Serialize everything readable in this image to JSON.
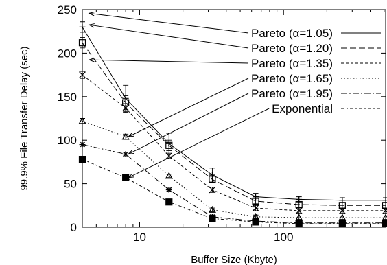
{
  "chart_data": {
    "type": "line",
    "xlabel": "Buffer Size (Kbyte)",
    "ylabel": "99.9% File Transfer Delay (sec)",
    "xscale": "log",
    "xlim": [
      4,
      512
    ],
    "ylim": [
      0,
      250
    ],
    "x_ticks": [
      10,
      100
    ],
    "x_tick_labels": [
      "10",
      "100"
    ],
    "y_ticks": [
      0,
      50,
      100,
      150,
      200,
      250
    ],
    "y_tick_labels": [
      "0",
      "50",
      "100",
      "150",
      "200",
      "250"
    ],
    "grid": false,
    "legend_position": "top-right",
    "x": [
      4,
      8,
      16,
      32,
      64,
      128,
      256,
      512
    ],
    "series": [
      {
        "name": "Pareto (α=1.05)",
        "marker": "plus",
        "dash": "",
        "values": [
          230,
          148,
          96,
          60,
          35,
          32,
          31,
          31
        ],
        "errors": [
          6,
          15,
          12,
          8,
          4,
          3,
          3,
          3
        ]
      },
      {
        "name": "Pareto (α=1.20)",
        "marker": "square",
        "dash": "9 4",
        "values": [
          212,
          143,
          94,
          55,
          30,
          26,
          25,
          25
        ],
        "errors": [
          6,
          8,
          6,
          4,
          3,
          3,
          3,
          3
        ]
      },
      {
        "name": "Pareto (α=1.35)",
        "marker": "x",
        "dash": "4 3",
        "values": [
          175,
          137,
          82,
          43,
          22,
          19,
          19,
          19
        ],
        "errors": [
          4,
          5,
          3,
          3,
          3,
          3,
          3,
          3
        ]
      },
      {
        "name": "Pareto (α=1.65)",
        "marker": "triangle",
        "dash": "1.5 3",
        "values": [
          122,
          104,
          59,
          20,
          12,
          11,
          11,
          11
        ],
        "errors": [
          3,
          3,
          2,
          2,
          2,
          2,
          2,
          2
        ]
      },
      {
        "name": "Pareto (α=1.95)",
        "marker": "star",
        "dash": "9 3 2 3",
        "values": [
          95,
          84,
          43,
          12,
          7,
          5,
          5,
          5
        ],
        "errors": [
          2,
          2,
          2,
          2,
          1,
          1,
          1,
          1
        ]
      },
      {
        "name": "Exponential",
        "marker": "filled-square",
        "dash": "5 3 2 3",
        "values": [
          78,
          57,
          29,
          10,
          6,
          4,
          4,
          4
        ],
        "errors": [
          2,
          2,
          1,
          1,
          1,
          1,
          1,
          1
        ]
      }
    ]
  }
}
